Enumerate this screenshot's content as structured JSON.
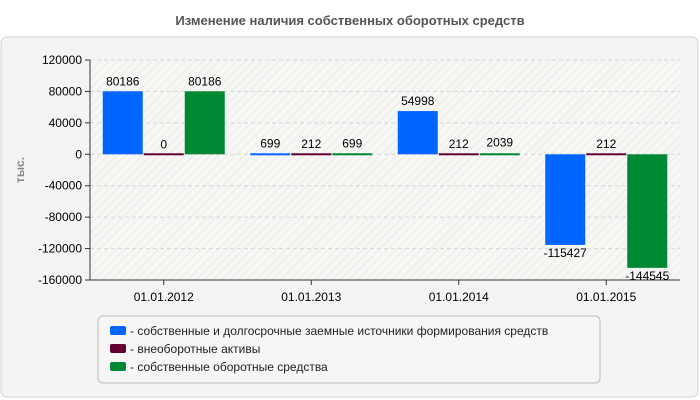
{
  "chart_data": {
    "type": "bar",
    "title": "Изменение наличия собственных оборотных средств",
    "ylabel": "тыс.",
    "xlabel": "",
    "categories": [
      "01.01.2012",
      "01.01.2013",
      "01.01.2014",
      "01.01.2015"
    ],
    "ylim": [
      -160000,
      120000
    ],
    "yticks": [
      120000,
      80000,
      40000,
      0,
      -40000,
      -80000,
      -120000,
      -160000
    ],
    "grid": true,
    "legend_position": "bottom",
    "series": [
      {
        "name": "- собственные и долгосрочные заемные источники формирования средств",
        "color": "#0066ff",
        "values": [
          80186,
          699,
          54998,
          -115427
        ],
        "labels": [
          "80186",
          "699",
          "54998",
          "-115427"
        ]
      },
      {
        "name": "- внеоборотные активы",
        "color": "#660033",
        "values": [
          0,
          212,
          212,
          212
        ],
        "labels": [
          "0",
          "212",
          "212",
          "212"
        ]
      },
      {
        "name": "- собственные оборотные средства",
        "color": "#008833",
        "values": [
          80186,
          699,
          2039,
          -144545
        ],
        "labels": [
          "80186",
          "699",
          "2039",
          "-144545"
        ]
      }
    ]
  }
}
